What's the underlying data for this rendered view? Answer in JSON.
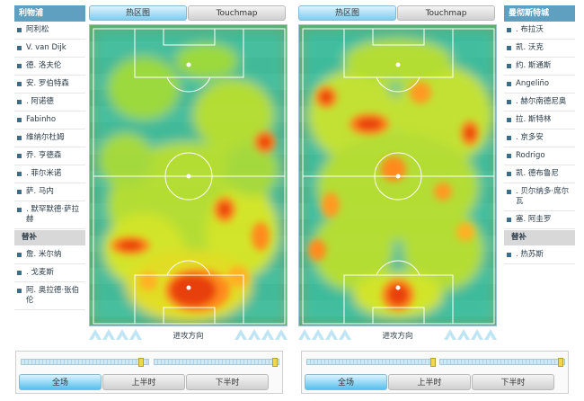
{
  "left_team": {
    "name": "利物浦",
    "players": [
      "阿利松",
      "V. van Dijk",
      "德. 洛夫伦",
      "安. 罗伯特森",
      ". 阿诺德",
      "Fabinho",
      "维纳尔杜姆",
      "乔. 亨德森",
      ". 菲尔米诺",
      "萨. 马内",
      ". 默罕默德·萨拉赫"
    ],
    "subs_label": "替补",
    "subs": [
      "詹. 米尔纳",
      ". 戈麦斯",
      "阿. 奥拉德·张伯伦"
    ]
  },
  "right_team": {
    "name": "曼彻斯特城",
    "players": [
      ". 布拉沃",
      "凯. 沃克",
      "约. 斯通斯",
      "Angeliño",
      ". 赫尔南德尼奥",
      "拉. 斯特林",
      ". 京多安",
      "Rodrigo",
      "凯. 德布鲁尼",
      ". 贝尔纳多·席尔瓦",
      "塞. 阿圭罗"
    ],
    "subs_label": "替补",
    "subs": [
      ". 热苏斯"
    ]
  },
  "tabs": {
    "heatmap": "热区图",
    "touchmap": "Touchmap"
  },
  "attack_direction": "进攻方向",
  "period_tabs": {
    "full": "全场",
    "first_half": "上半时",
    "second_half": "下半时"
  },
  "colors": {
    "accent": "#5fa0c0",
    "active_tab": "#55c0ec",
    "slider_knob": "#f2d64b"
  }
}
